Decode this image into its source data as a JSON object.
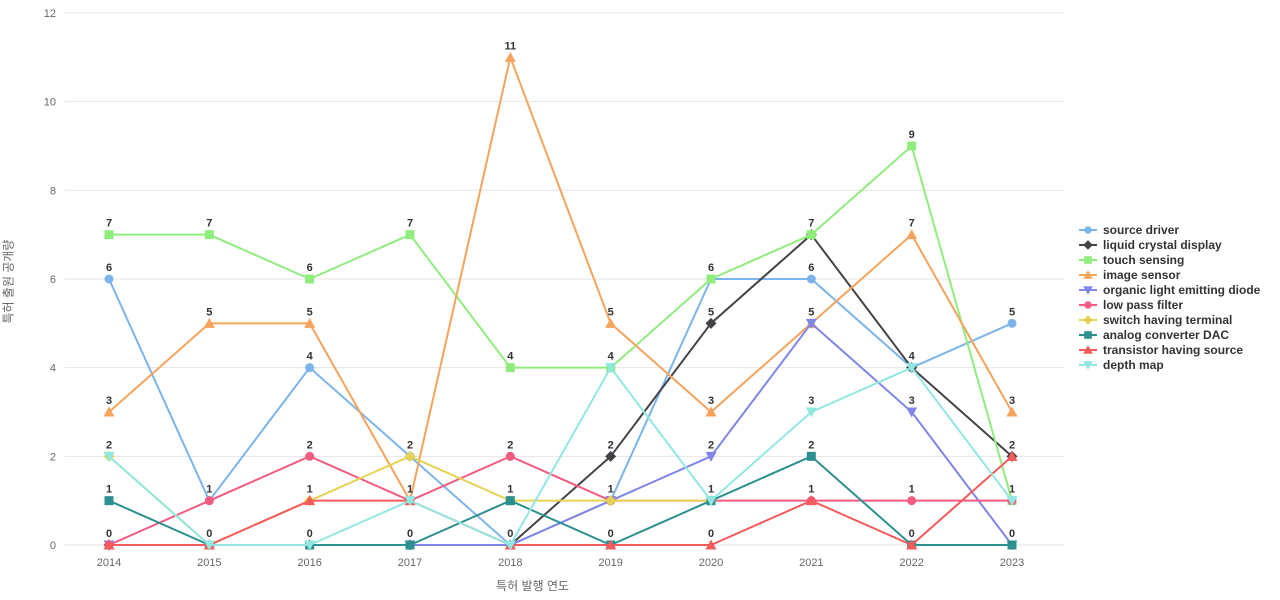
{
  "chart_data": {
    "type": "line",
    "title": "",
    "xlabel": "특허 발행 연도",
    "ylabel": "특허 출원 공개량",
    "x": [
      2014,
      2015,
      2016,
      2017,
      2018,
      2019,
      2020,
      2021,
      2022,
      2023
    ],
    "y_ticks": [
      0,
      2,
      4,
      6,
      8,
      10,
      12
    ],
    "ylim": [
      0,
      12
    ],
    "grid": true,
    "legend_position": "right",
    "data_labels": true,
    "colors": {
      "grid": "#e6e6e6",
      "tick_label": "#666666",
      "axis_title": "#666666",
      "data_label": "#333333",
      "legend_label": "#333333"
    },
    "series": [
      {
        "name": "source driver",
        "color": "#7cb5ec",
        "marker": "circle",
        "values": [
          6,
          1,
          4,
          2,
          0,
          1,
          6,
          6,
          4,
          5
        ]
      },
      {
        "name": "liquid crystal display",
        "color": "#434348",
        "marker": "diamond",
        "values": [
          0,
          0,
          0,
          0,
          0,
          2,
          5,
          7,
          4,
          2
        ]
      },
      {
        "name": "touch sensing",
        "color": "#90ed7d",
        "marker": "square",
        "values": [
          7,
          7,
          6,
          7,
          4,
          4,
          6,
          7,
          9,
          1
        ]
      },
      {
        "name": "image sensor",
        "color": "#f7a35c",
        "marker": "triangle",
        "values": [
          3,
          5,
          5,
          1,
          11,
          5,
          3,
          5,
          7,
          3
        ]
      },
      {
        "name": "organic light emitting diode",
        "color": "#8085e9",
        "marker": "triangle-down",
        "values": [
          0,
          0,
          0,
          0,
          0,
          1,
          2,
          5,
          3,
          0
        ]
      },
      {
        "name": "low pass filter",
        "color": "#f15c80",
        "marker": "circle",
        "values": [
          0,
          1,
          2,
          1,
          2,
          1,
          1,
          1,
          1,
          1
        ]
      },
      {
        "name": "switch having terminal",
        "color": "#e4d354",
        "marker": "diamond",
        "values": [
          2,
          0,
          1,
          2,
          1,
          1,
          1,
          null,
          null,
          null
        ]
      },
      {
        "name": "analog converter DAC",
        "color": "#2b908f",
        "marker": "square",
        "values": [
          1,
          0,
          0,
          0,
          1,
          0,
          1,
          2,
          0,
          0
        ]
      },
      {
        "name": "transistor having source",
        "color": "#f45b5b",
        "marker": "triangle",
        "values": [
          0,
          0,
          1,
          1,
          0,
          0,
          0,
          1,
          0,
          2
        ]
      },
      {
        "name": "depth map",
        "color": "#91e8e1",
        "marker": "triangle-down",
        "values": [
          2,
          0,
          0,
          1,
          0,
          4,
          1,
          3,
          4,
          1
        ]
      }
    ]
  }
}
